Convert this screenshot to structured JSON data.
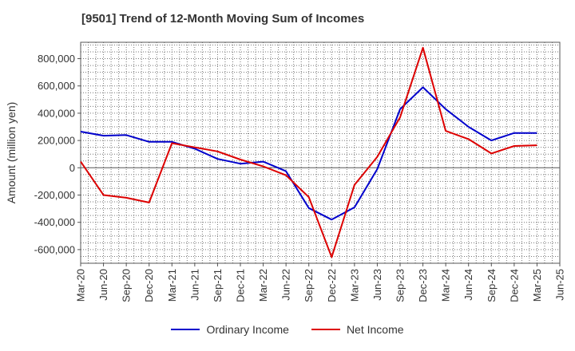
{
  "chart_data": {
    "type": "line",
    "title": "[9501]  Trend of 12-Month Moving Sum of Incomes",
    "ylabel": "Amount (million yen)",
    "xlabel": "",
    "ylim": [
      -700000,
      920000
    ],
    "yticks": [
      800000,
      600000,
      400000,
      200000,
      0,
      -200000,
      -400000,
      -600000
    ],
    "ytick_labels": [
      "800,000",
      "600,000",
      "400,000",
      "200,000",
      "0",
      "-200,000",
      "-400,000",
      "-600,000"
    ],
    "categories": [
      "Mar-20",
      "Jun-20",
      "Sep-20",
      "Dec-20",
      "Mar-21",
      "Jun-21",
      "Sep-21",
      "Dec-21",
      "Mar-22",
      "Jun-22",
      "Sep-22",
      "Dec-22",
      "Mar-23",
      "Jun-23",
      "Sep-23",
      "Dec-23",
      "Mar-24",
      "Jun-24",
      "Sep-24",
      "Dec-24",
      "Mar-25",
      "Jun-25"
    ],
    "grid": true,
    "legend_position": "bottom",
    "series": [
      {
        "name": "Ordinary Income",
        "color": "#0000cc",
        "values": [
          265000,
          235000,
          240000,
          190000,
          190000,
          140000,
          65000,
          30000,
          45000,
          -25000,
          -295000,
          -380000,
          -290000,
          -10000,
          430000,
          590000,
          430000,
          300000,
          200000,
          255000,
          255000,
          null
        ]
      },
      {
        "name": "Net Income",
        "color": "#dd0000",
        "values": [
          45000,
          -200000,
          -220000,
          -255000,
          180000,
          150000,
          120000,
          60000,
          10000,
          -55000,
          -215000,
          -655000,
          -125000,
          80000,
          370000,
          880000,
          270000,
          210000,
          105000,
          160000,
          165000,
          null
        ]
      }
    ]
  }
}
